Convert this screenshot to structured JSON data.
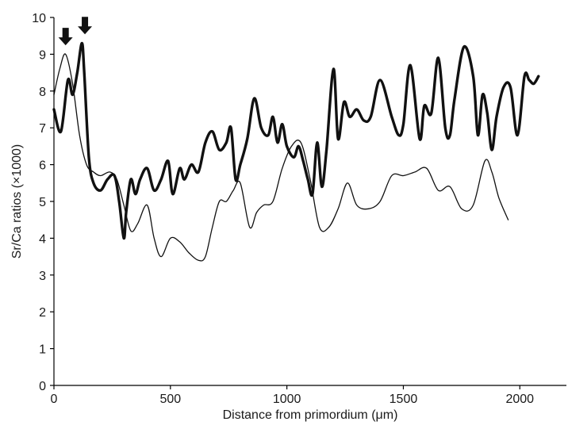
{
  "chart_data": {
    "type": "line",
    "title": "",
    "xlabel": "Distance from primordium (μm)",
    "ylabel": "Sr/Ca ratios (×1000)",
    "xlim": [
      0,
      2200
    ],
    "ylim": [
      0,
      10
    ],
    "xticks": [
      0,
      500,
      1000,
      1500,
      2000
    ],
    "yticks": [
      0,
      1,
      2,
      3,
      4,
      5,
      6,
      7,
      8,
      9,
      10
    ],
    "xtick_labels": [
      "0",
      "500",
      "1000",
      "1500",
      "2000"
    ],
    "ytick_labels": [
      "0",
      "1",
      "2",
      "3",
      "4",
      "5",
      "6",
      "7",
      "8",
      "9",
      "10"
    ],
    "grid": false,
    "legend": "none",
    "series": [
      {
        "style": "thick",
        "color": "#111111",
        "x": [
          0,
          30,
          60,
          80,
          100,
          120,
          130,
          150,
          170,
          200,
          230,
          260,
          280,
          300,
          310,
          330,
          350,
          370,
          400,
          430,
          460,
          490,
          510,
          540,
          560,
          590,
          620,
          650,
          680,
          710,
          740,
          760,
          780,
          800,
          830,
          860,
          890,
          920,
          940,
          960,
          980,
          1000,
          1030,
          1050,
          1070,
          1090,
          1110,
          1130,
          1150,
          1170,
          1200,
          1220,
          1245,
          1270,
          1300,
          1330,
          1360,
          1400,
          1450,
          1480,
          1500,
          1530,
          1570,
          1590,
          1620,
          1650,
          1680,
          1700,
          1720,
          1760,
          1800,
          1820,
          1840,
          1860,
          1880,
          1900,
          1930,
          1960,
          1990,
          2020,
          2040,
          2060,
          2080
        ],
        "y": [
          7.5,
          6.9,
          8.3,
          7.9,
          8.5,
          9.3,
          8.5,
          6.2,
          5.5,
          5.3,
          5.6,
          5.7,
          5.0,
          4.0,
          4.7,
          5.6,
          5.2,
          5.6,
          5.9,
          5.3,
          5.6,
          6.1,
          5.2,
          5.9,
          5.6,
          6.0,
          5.8,
          6.6,
          6.9,
          6.4,
          6.6,
          7.0,
          5.6,
          6.0,
          6.7,
          7.8,
          7.0,
          6.8,
          7.3,
          6.6,
          7.1,
          6.5,
          6.2,
          6.5,
          6.1,
          5.6,
          5.2,
          6.6,
          5.4,
          6.4,
          8.6,
          6.7,
          7.7,
          7.3,
          7.5,
          7.2,
          7.3,
          8.3,
          7.3,
          6.8,
          7.1,
          8.7,
          6.7,
          7.6,
          7.4,
          8.9,
          7.0,
          6.8,
          7.8,
          9.2,
          8.4,
          6.8,
          7.9,
          7.4,
          6.4,
          7.3,
          8.1,
          8.1,
          6.8,
          8.4,
          8.3,
          8.2,
          8.4
        ]
      },
      {
        "style": "thin",
        "color": "#111111",
        "x": [
          0,
          25,
          50,
          80,
          110,
          140,
          170,
          200,
          240,
          270,
          300,
          330,
          360,
          400,
          430,
          460,
          500,
          540,
          580,
          620,
          650,
          680,
          710,
          740,
          770,
          800,
          840,
          870,
          900,
          940,
          980,
          1020,
          1060,
          1100,
          1140,
          1180,
          1220,
          1260,
          1300,
          1350,
          1400,
          1450,
          1500,
          1550,
          1600,
          1650,
          1700,
          1750,
          1800,
          1850,
          1880,
          1910,
          1950
        ],
        "y": [
          7.9,
          8.6,
          9.0,
          8.2,
          6.8,
          6.0,
          5.8,
          5.7,
          5.8,
          5.6,
          4.9,
          4.2,
          4.4,
          4.9,
          4.0,
          3.5,
          4.0,
          3.9,
          3.6,
          3.4,
          3.5,
          4.3,
          5.0,
          5.0,
          5.3,
          5.5,
          4.3,
          4.7,
          4.9,
          5.0,
          5.9,
          6.5,
          6.6,
          5.6,
          4.3,
          4.3,
          4.8,
          5.5,
          4.9,
          4.8,
          5.0,
          5.7,
          5.7,
          5.8,
          5.9,
          5.3,
          5.4,
          4.8,
          4.9,
          6.1,
          5.8,
          5.1,
          4.5
        ]
      }
    ],
    "annotations": [
      {
        "type": "arrow-down",
        "x": 50,
        "y_tip": 9.2
      },
      {
        "type": "arrow-down",
        "x": 133,
        "y_tip": 9.5
      }
    ]
  }
}
